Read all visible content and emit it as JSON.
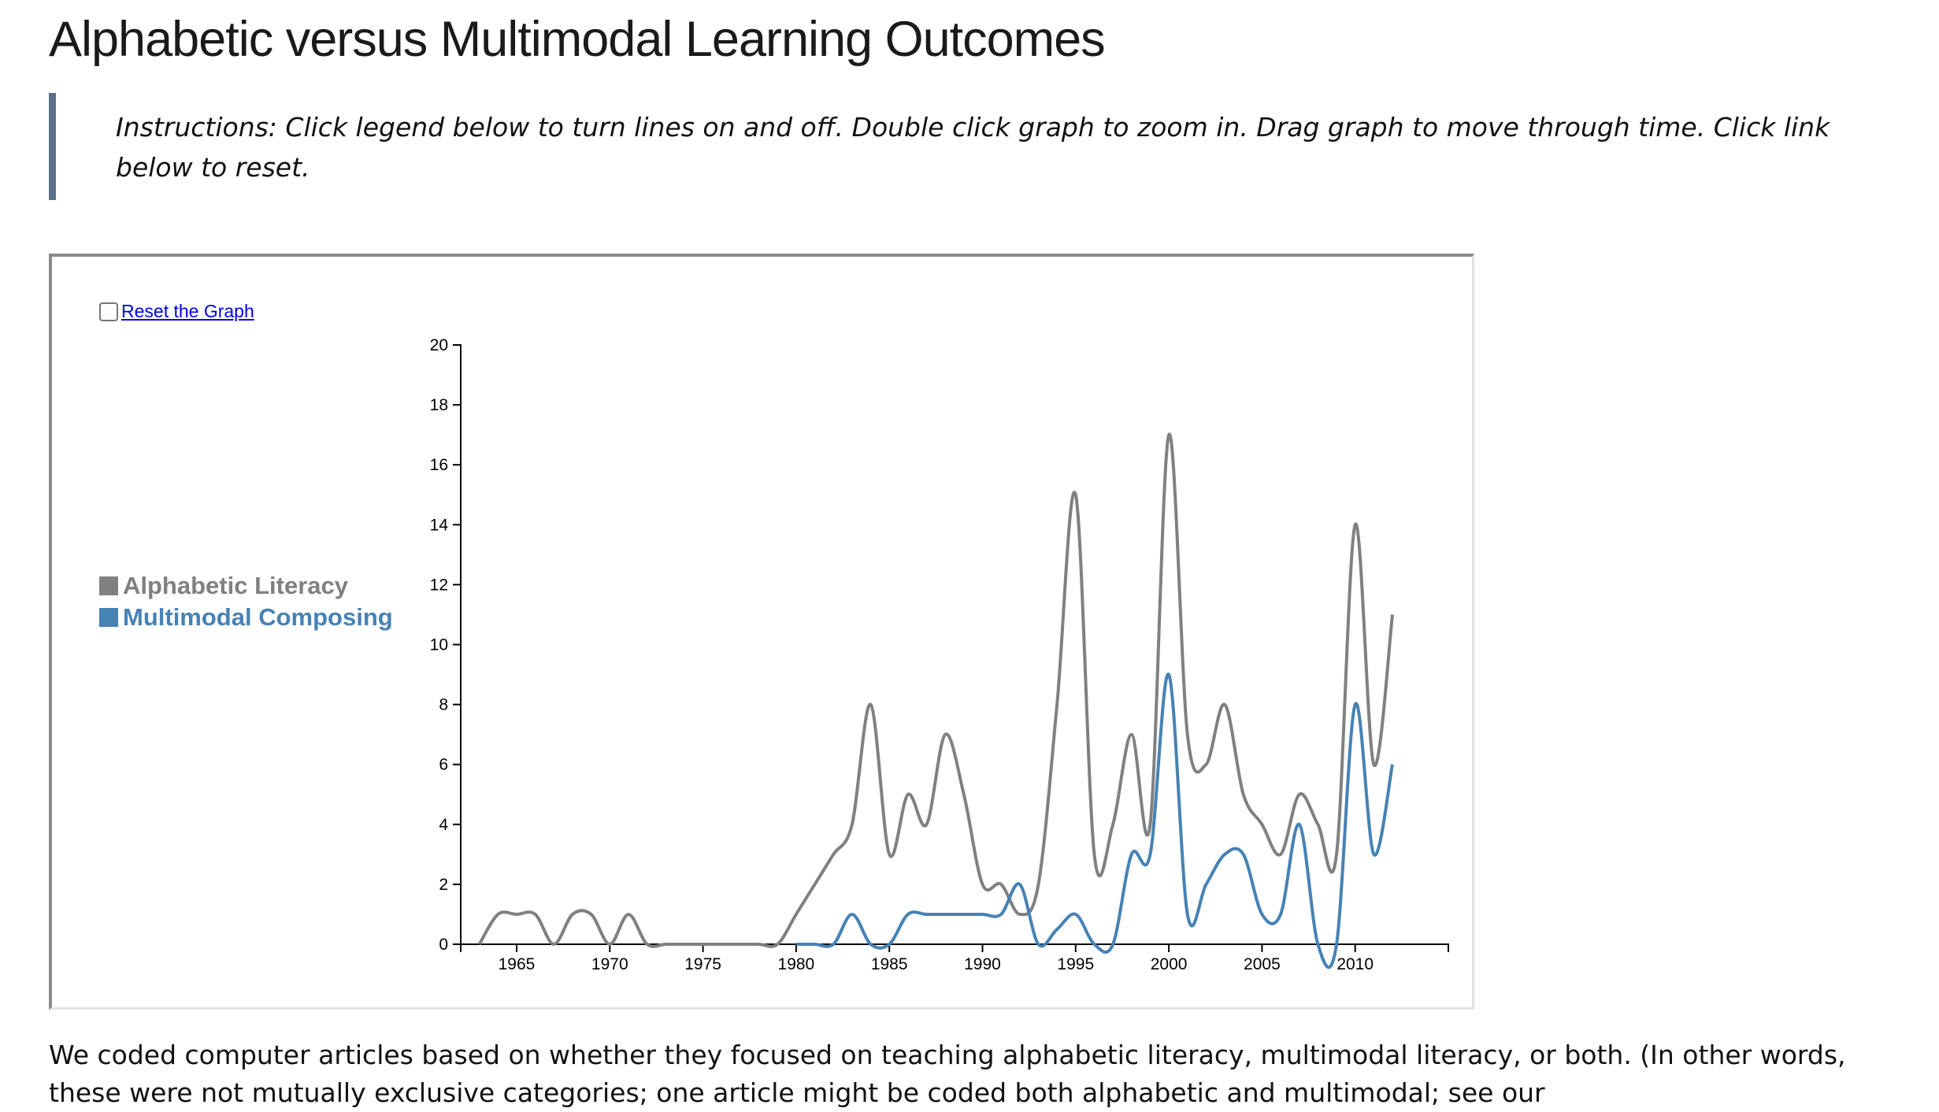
{
  "page": {
    "title": "Alphabetic versus Multimodal Learning Outcomes",
    "instructions": "Instructions: Click legend below to turn lines on and off. Double click graph to zoom in. Drag graph to move through time. Click link below to reset.",
    "body_text": "We coded computer articles based on whether they focused on teaching alphabetic literacy, multimodal literacy, or both. (In other words, these were not mutually exclusive categories; one article might be coded both alphabetic and multimodal; see our"
  },
  "controls": {
    "reset_label": "Reset the Graph",
    "reset_checked": false
  },
  "chart_data": {
    "type": "line",
    "title": "",
    "xlabel": "",
    "ylabel": "",
    "xlim": [
      1962,
      2015
    ],
    "ylim": [
      0,
      20
    ],
    "x_ticks": [
      1965,
      1970,
      1975,
      1980,
      1985,
      1990,
      1995,
      2000,
      2005,
      2010
    ],
    "y_ticks": [
      0,
      2,
      4,
      6,
      8,
      10,
      12,
      14,
      16,
      18,
      20
    ],
    "grid": false,
    "legend_position": "left",
    "curve": "smooth",
    "series": [
      {
        "name": "Alphabetic Literacy",
        "color": "#808080",
        "points": [
          [
            1963,
            0
          ],
          [
            1964,
            1
          ],
          [
            1965,
            1
          ],
          [
            1966,
            1
          ],
          [
            1967,
            0
          ],
          [
            1968,
            1
          ],
          [
            1969,
            1
          ],
          [
            1970,
            0
          ],
          [
            1971,
            1
          ],
          [
            1972,
            0
          ],
          [
            1973,
            0
          ],
          [
            1974,
            0
          ],
          [
            1975,
            0
          ],
          [
            1976,
            0
          ],
          [
            1977,
            0
          ],
          [
            1978,
            0
          ],
          [
            1979,
            0
          ],
          [
            1980,
            1
          ],
          [
            1981,
            2
          ],
          [
            1982,
            3
          ],
          [
            1983,
            4
          ],
          [
            1984,
            8
          ],
          [
            1985,
            3
          ],
          [
            1986,
            5
          ],
          [
            1987,
            4
          ],
          [
            1988,
            7
          ],
          [
            1989,
            5
          ],
          [
            1990,
            2
          ],
          [
            1991,
            2
          ],
          [
            1992,
            1
          ],
          [
            1993,
            2
          ],
          [
            1994,
            8
          ],
          [
            1995,
            15
          ],
          [
            1996,
            3
          ],
          [
            1997,
            4
          ],
          [
            1998,
            7
          ],
          [
            1999,
            4
          ],
          [
            2000,
            17
          ],
          [
            2001,
            7
          ],
          [
            2002,
            6
          ],
          [
            2003,
            8
          ],
          [
            2004,
            5
          ],
          [
            2005,
            4
          ],
          [
            2006,
            3
          ],
          [
            2007,
            5
          ],
          [
            2008,
            4
          ],
          [
            2009,
            3
          ],
          [
            2010,
            14
          ],
          [
            2011,
            6
          ],
          [
            2012,
            11
          ]
        ]
      },
      {
        "name": "Multimodal Composing",
        "color": "#4682b4",
        "points": [
          [
            1980,
            0
          ],
          [
            1981,
            0
          ],
          [
            1982,
            0
          ],
          [
            1983,
            1
          ],
          [
            1984,
            0
          ],
          [
            1985,
            0
          ],
          [
            1986,
            1
          ],
          [
            1987,
            1
          ],
          [
            1988,
            1
          ],
          [
            1989,
            1
          ],
          [
            1990,
            1
          ],
          [
            1991,
            1
          ],
          [
            1992,
            2
          ],
          [
            1993,
            0
          ],
          [
            1994,
            0.5
          ],
          [
            1995,
            1
          ],
          [
            1996,
            0
          ],
          [
            1997,
            0
          ],
          [
            1998,
            3
          ],
          [
            1999,
            3
          ],
          [
            2000,
            9
          ],
          [
            2001,
            1
          ],
          [
            2002,
            2
          ],
          [
            2003,
            3
          ],
          [
            2004,
            3
          ],
          [
            2005,
            1
          ],
          [
            2006,
            1
          ],
          [
            2007,
            4
          ],
          [
            2008,
            0
          ],
          [
            2009,
            0
          ],
          [
            2010,
            8
          ],
          [
            2011,
            3
          ],
          [
            2012,
            6
          ]
        ]
      }
    ]
  }
}
